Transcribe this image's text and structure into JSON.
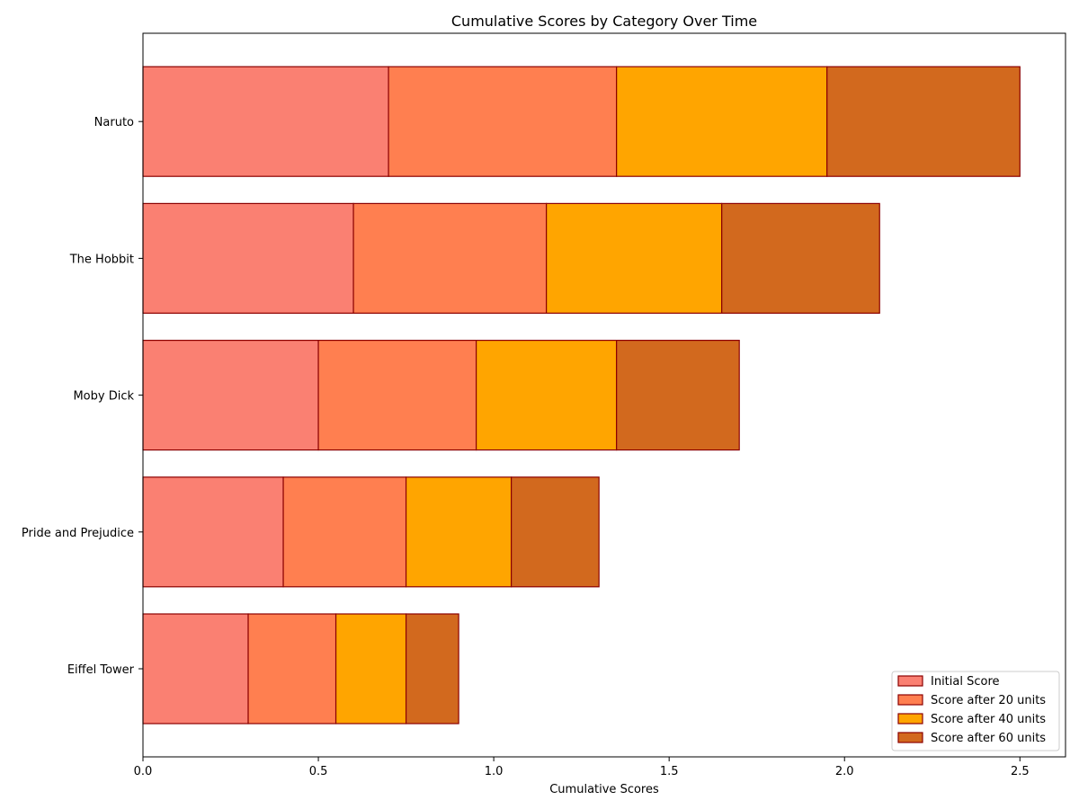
{
  "chart_data": {
    "type": "bar",
    "orientation": "horizontal",
    "stacked": true,
    "title": "Cumulative Scores by Category Over Time",
    "xlabel": "Cumulative Scores",
    "ylabel": "",
    "xlim": [
      0,
      2.63
    ],
    "xticks": [
      "0.0",
      "0.5",
      "1.0",
      "1.5",
      "2.0",
      "2.5"
    ],
    "categories": [
      "Eiffel Tower",
      "Pride and Prejudice",
      "Moby Dick",
      "The Hobbit",
      "Naruto"
    ],
    "series": [
      {
        "name": "Initial Score",
        "color": "#fa8072",
        "values": [
          0.3,
          0.4,
          0.5,
          0.6,
          0.7
        ]
      },
      {
        "name": "Score after 20 units",
        "color": "#ff7f50",
        "values": [
          0.25,
          0.35,
          0.45,
          0.55,
          0.65
        ]
      },
      {
        "name": "Score after 40 units",
        "color": "#ffa500",
        "values": [
          0.2,
          0.3,
          0.4,
          0.5,
          0.6
        ]
      },
      {
        "name": "Score after 60 units",
        "color": "#d2691e",
        "values": [
          0.15,
          0.25,
          0.35,
          0.45,
          0.55
        ]
      }
    ],
    "edge_color": "#8b0000",
    "grid": false,
    "legend_position": "lower-right"
  }
}
